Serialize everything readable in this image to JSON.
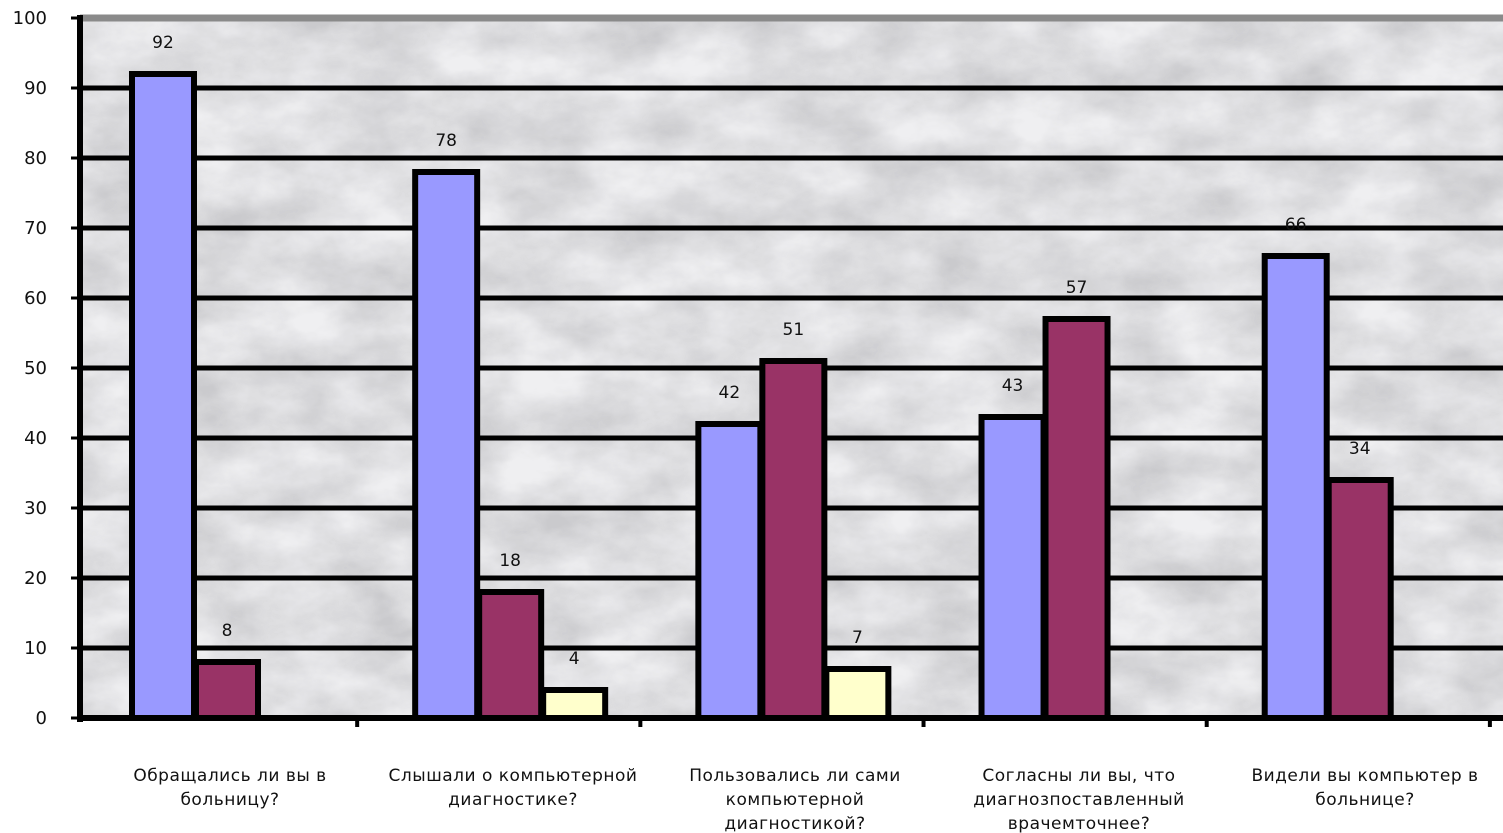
{
  "chart_data": {
    "type": "bar",
    "categories": [
      [
        "Обращались ли  вы в",
        "больницу?"
      ],
      [
        "Слышали о  компьютерной",
        "диагностике?"
      ],
      [
        "Пользовались ли сами",
        "компьютерной",
        "диагностикой?"
      ],
      [
        "Согласны ли вы, что",
        "диагнозпоставленный",
        "врачемточнее?"
      ],
      [
        "Видели  вы компьютер  в",
        "больнице?"
      ]
    ],
    "series": [
      {
        "color": "#9999ff",
        "values": [
          92,
          78,
          42,
          43,
          66
        ]
      },
      {
        "color": "#993366",
        "values": [
          8,
          18,
          51,
          57,
          34
        ]
      },
      {
        "color": "#ffffcc",
        "values": [
          null,
          4,
          7,
          null,
          null
        ]
      }
    ],
    "ylim": [
      0,
      100
    ],
    "yticks": [
      "0",
      "10",
      "20",
      "30",
      "40",
      "50",
      "60",
      "70",
      "80",
      "90",
      "100"
    ],
    "grid": true,
    "legend": "none"
  }
}
